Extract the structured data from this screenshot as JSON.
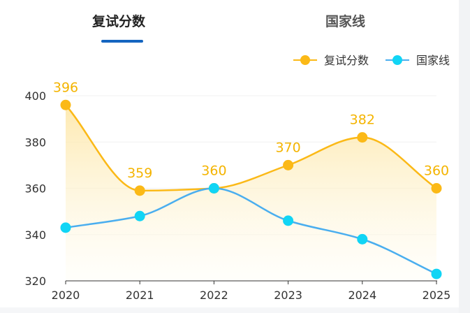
{
  "tabs": [
    {
      "label": "复试分数",
      "active": true
    },
    {
      "label": "国家线",
      "active": false
    }
  ],
  "chart_data": {
    "type": "line",
    "categories": [
      "2020",
      "2021",
      "2022",
      "2023",
      "2024",
      "2025"
    ],
    "series": [
      {
        "name": "复试分数",
        "values": [
          396,
          359,
          360,
          370,
          382,
          360
        ],
        "color": "#fbb917",
        "area": true,
        "data_labels": true
      },
      {
        "name": "国家线",
        "values": [
          343,
          348,
          360,
          346,
          338,
          323
        ],
        "color": "#4aaeef",
        "marker_color": "#11d5f5",
        "area": false,
        "data_labels": false
      }
    ],
    "yticks": [
      320,
      340,
      360,
      380,
      400
    ],
    "ylim": [
      320,
      400
    ],
    "legend_position": "top-right",
    "smooth": true,
    "grid": true
  }
}
